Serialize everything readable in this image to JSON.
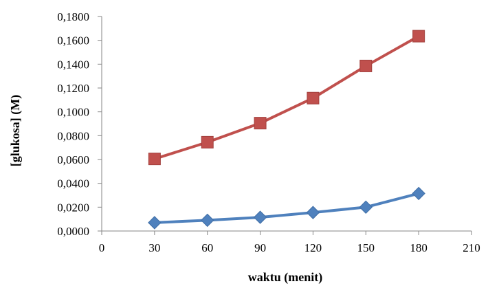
{
  "chart_data": {
    "type": "line",
    "title": "",
    "xlabel": "waktu (menit)",
    "ylabel": "[glukosa] (M)",
    "xlim": [
      0,
      210
    ],
    "ylim": [
      0,
      0.18
    ],
    "xticks": [
      "0",
      "30",
      "60",
      "90",
      "120",
      "150",
      "180",
      "210"
    ],
    "yticks": [
      "0,0000",
      "0,0200",
      "0,0400",
      "0,0600",
      "0,0800",
      "0,1000",
      "0,1200",
      "0,1400",
      "0,1600",
      "0,1800"
    ],
    "grid": false,
    "legend": "none",
    "x": [
      30,
      60,
      90,
      120,
      150,
      180
    ],
    "series": [
      {
        "values": [
          0.0605,
          0.0745,
          0.0905,
          0.1115,
          0.1385,
          0.1635
        ],
        "color": "#c0504d",
        "marker": "square"
      },
      {
        "values": [
          0.007,
          0.009,
          0.0115,
          0.0155,
          0.02,
          0.0315
        ],
        "color": "#4f81bd",
        "marker": "diamond"
      }
    ]
  }
}
